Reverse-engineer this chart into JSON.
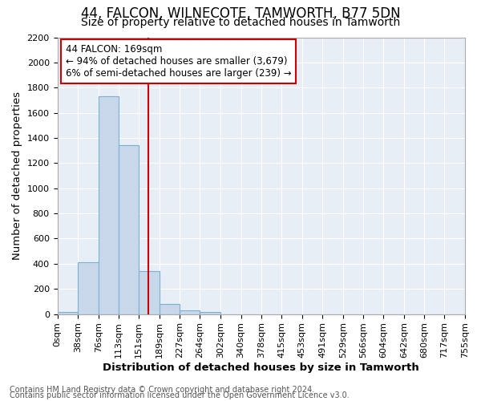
{
  "title": "44, FALCON, WILNECOTE, TAMWORTH, B77 5DN",
  "subtitle": "Size of property relative to detached houses in Tamworth",
  "xlabel": "Distribution of detached houses by size in Tamworth",
  "ylabel": "Number of detached properties",
  "footer_line1": "Contains HM Land Registry data © Crown copyright and database right 2024.",
  "footer_line2": "Contains public sector information licensed under the Open Government Licence v3.0.",
  "bin_edges": [
    0,
    38,
    76,
    113,
    151,
    189,
    227,
    264,
    302,
    340,
    378,
    415,
    453,
    491,
    529,
    566,
    604,
    642,
    680,
    717,
    755
  ],
  "bar_heights": [
    15,
    410,
    1730,
    1345,
    340,
    80,
    30,
    15,
    0,
    0,
    0,
    0,
    0,
    0,
    0,
    0,
    0,
    0,
    0,
    0
  ],
  "bar_color": "#c8d8ea",
  "bar_edgecolor": "#7ab0d4",
  "vline_x": 169,
  "vline_color": "#cc0000",
  "annotation_line1": "44 FALCON: 169sqm",
  "annotation_line2": "← 94% of detached houses are smaller (3,679)",
  "annotation_line3": "6% of semi-detached houses are larger (239) →",
  "annotation_box_edgecolor": "#cc0000",
  "annotation_box_facecolor": "#ffffff",
  "ylim": [
    0,
    2200
  ],
  "yticks": [
    0,
    200,
    400,
    600,
    800,
    1000,
    1200,
    1400,
    1600,
    1800,
    2000,
    2200
  ],
  "bg_color": "#e8eef6",
  "title_fontsize": 12,
  "subtitle_fontsize": 10,
  "axis_label_fontsize": 9.5,
  "tick_fontsize": 8,
  "footer_fontsize": 7
}
